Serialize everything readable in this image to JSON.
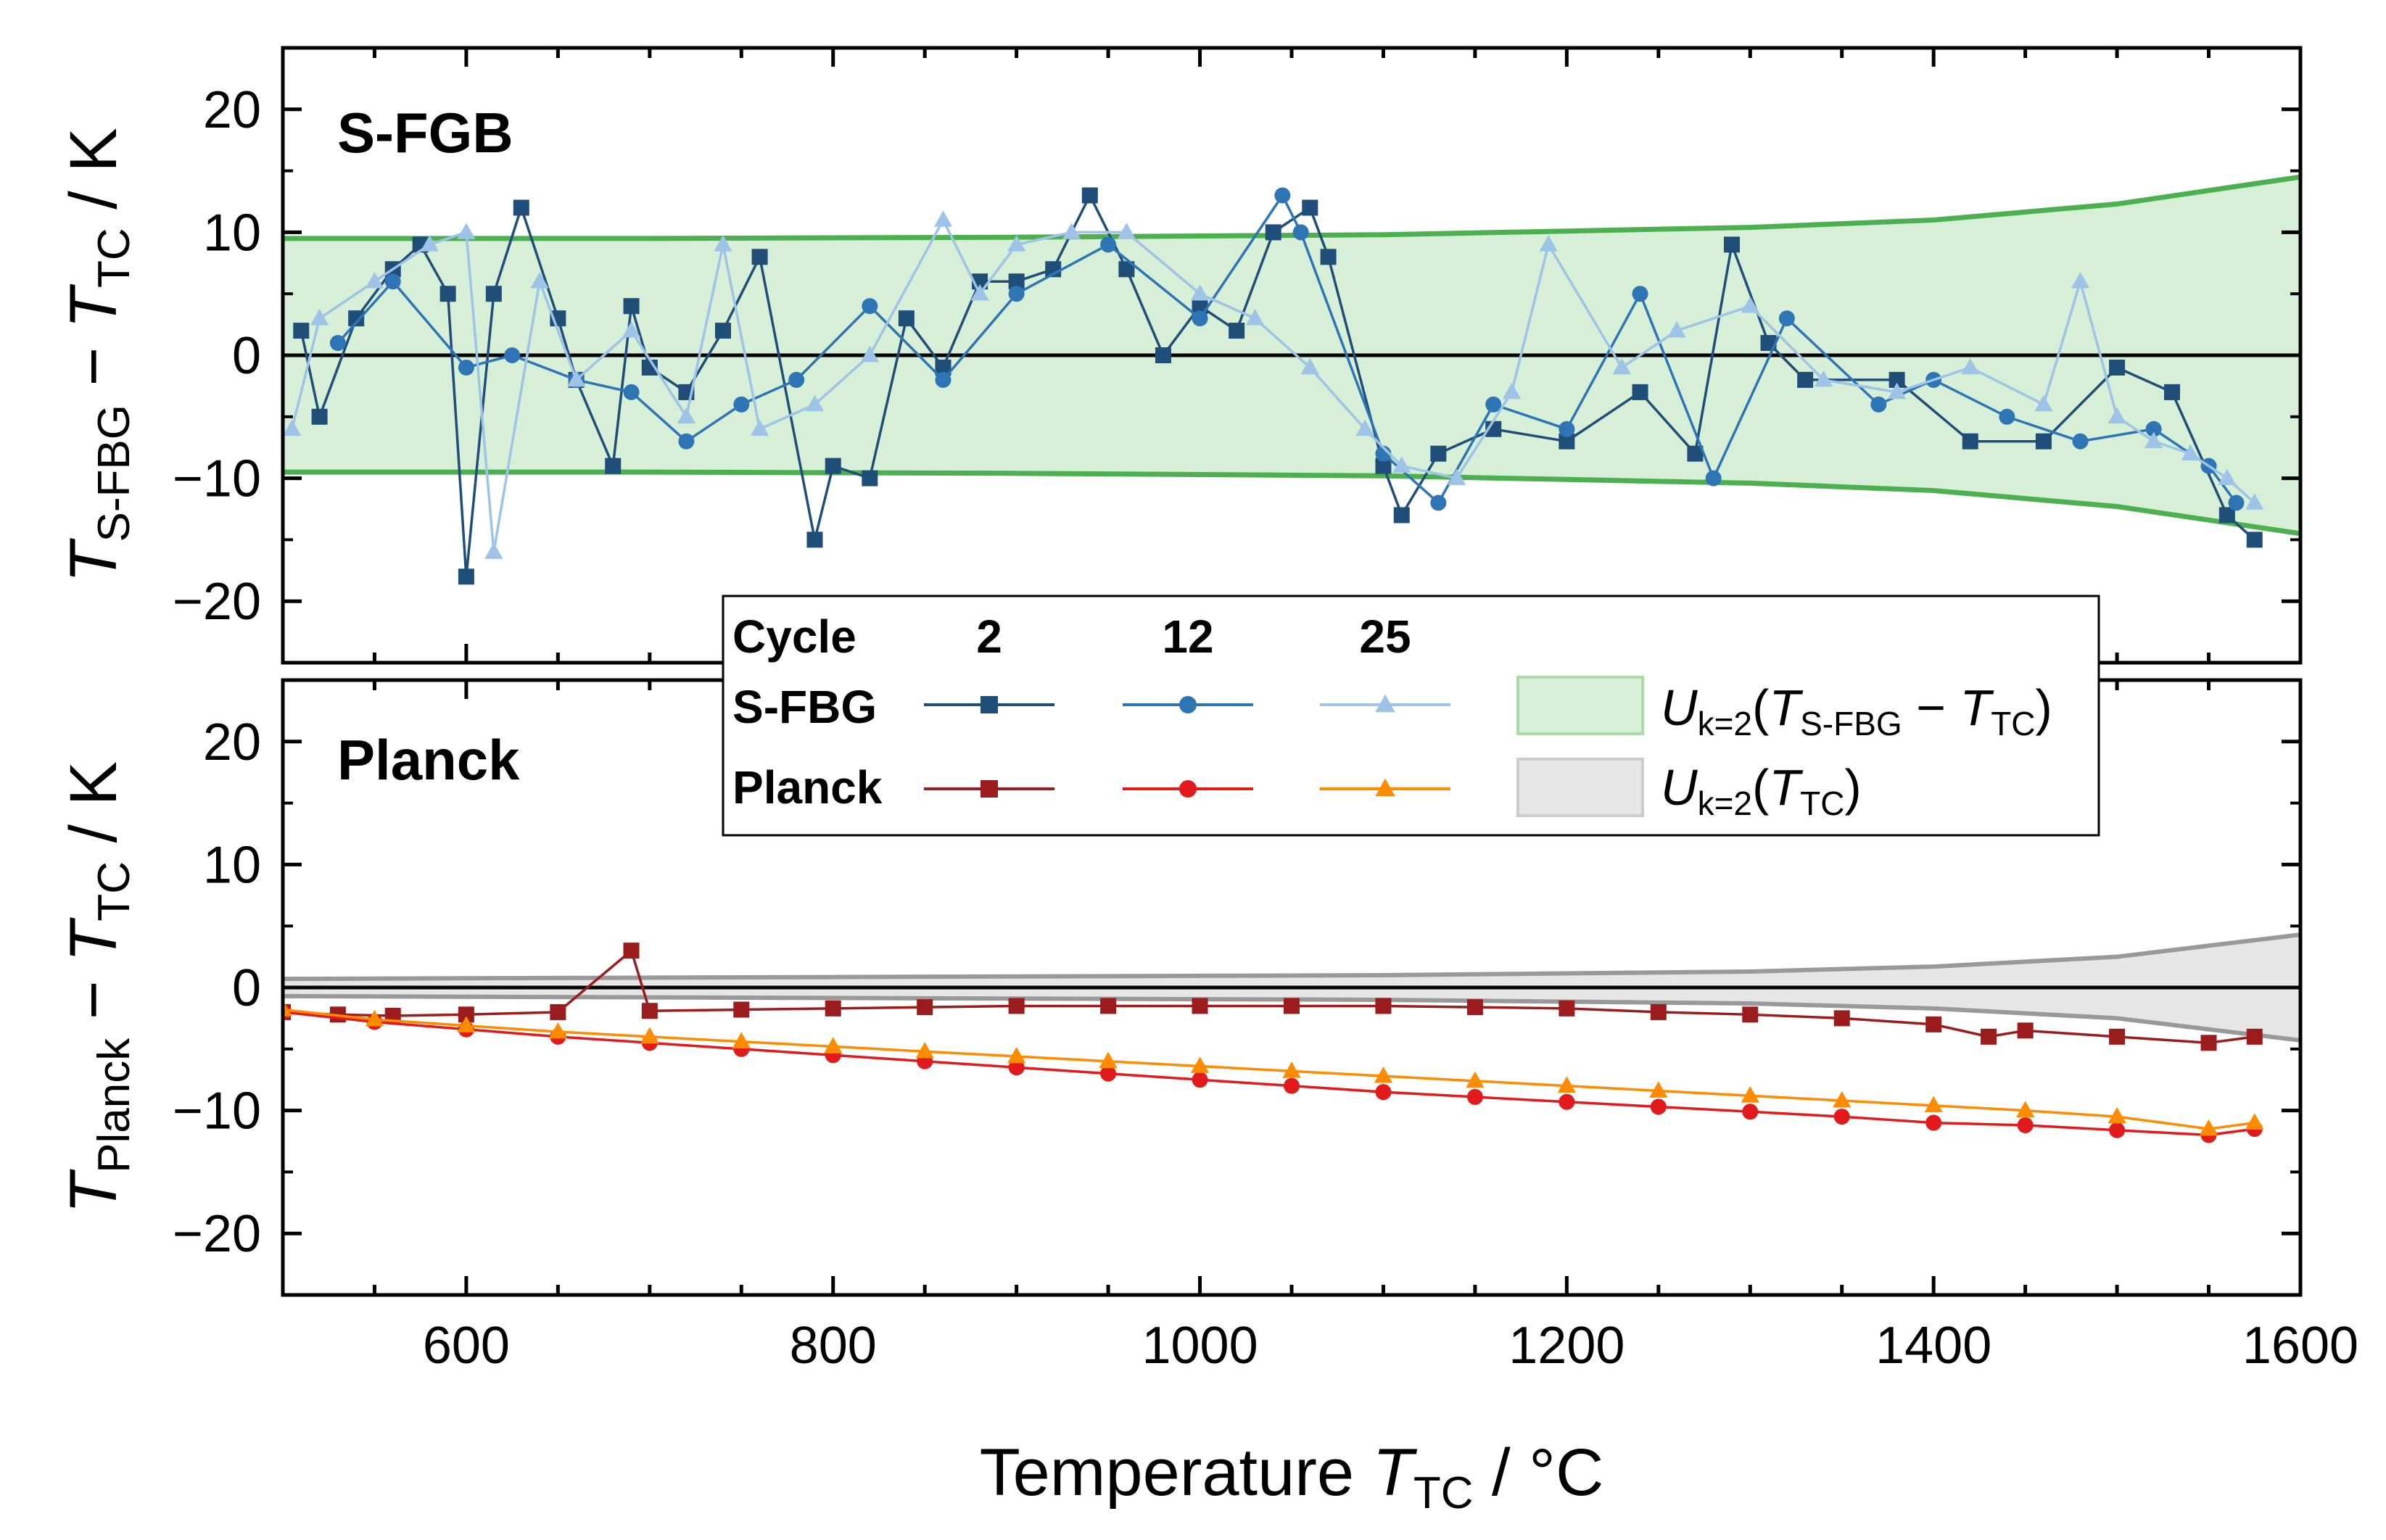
{
  "chart_data": {
    "type": "line",
    "xlabel": "Temperature",
    "xlabel_symbol": "T",
    "xlabel_sub": "TC",
    "xlabel_unit": " / °C",
    "xlim": [
      500,
      1600
    ],
    "xticks": [
      600,
      800,
      1000,
      1200,
      1400,
      1600
    ],
    "legend": {
      "cycle_label": "Cycle",
      "cycles": [
        "2",
        "12",
        "25"
      ],
      "rows": [
        "S-FBG",
        "Planck"
      ],
      "band_label_1": {
        "pre": "U",
        "sub": "k=2",
        "open": "(",
        "sym": "T",
        "sub2": "S-FBG",
        "mid": " − ",
        "sym2": "T",
        "sub3": "TC",
        "close": ")"
      },
      "band_label_2": {
        "pre": "U",
        "sub": "k=2",
        "open": "(",
        "sym": "T",
        "sub2": "TC",
        "close": ")"
      }
    },
    "panels": [
      {
        "title": "S-FGB",
        "ylabel_sym": "T",
        "ylabel_sub": "S-FBG",
        "ylabel_mid": " − ",
        "ylabel_sym2": "T",
        "ylabel_sub2": "TC",
        "ylabel_unit": " / K",
        "ylim": [
          -25,
          25
        ],
        "yticks": [
          -20,
          -10,
          0,
          10,
          20
        ],
        "ytick_labels": [
          "−20",
          "−10",
          "0",
          "10",
          "20"
        ],
        "band": {
          "name": "U_k=2(T_S-FBG − T_TC)",
          "x": [
            500,
            700,
            900,
            1100,
            1300,
            1400,
            1500,
            1600
          ],
          "upper": [
            9.5,
            9.5,
            9.6,
            9.8,
            10.4,
            11.0,
            12.3,
            14.5
          ]
        },
        "series": [
          {
            "name": "S-FBG cycle 2",
            "color": "#1f4e79",
            "marker": "square",
            "x": [
              510,
              520,
              540,
              560,
              575,
              590,
              600,
              615,
              630,
              650,
              660,
              680,
              690,
              700,
              720,
              740,
              760,
              790,
              800,
              820,
              840,
              860,
              880,
              900,
              920,
              940,
              960,
              980,
              1000,
              1020,
              1040,
              1060,
              1070,
              1100,
              1110,
              1130,
              1160,
              1200,
              1240,
              1270,
              1290,
              1310,
              1330,
              1380,
              1420,
              1460,
              1500,
              1530,
              1560,
              1575
            ],
            "y": [
              2,
              -5,
              3,
              7,
              9,
              5,
              -18,
              5,
              12,
              3,
              -2,
              -9,
              4,
              -1,
              -3,
              2,
              8,
              -15,
              -9,
              -10,
              3,
              -1,
              6,
              6,
              7,
              13,
              7,
              0,
              4,
              2,
              10,
              12,
              8,
              -9,
              -13,
              -8,
              -6,
              -7,
              -3,
              -8,
              9,
              1,
              -2,
              -2,
              -7,
              -7,
              -1,
              -3,
              -13,
              -15
            ]
          },
          {
            "name": "S-FBG cycle 12",
            "color": "#2e75b6",
            "marker": "circle",
            "x": [
              530,
              560,
              600,
              625,
              660,
              690,
              720,
              750,
              780,
              820,
              860,
              900,
              950,
              1000,
              1045,
              1055,
              1100,
              1130,
              1160,
              1200,
              1240,
              1280,
              1320,
              1370,
              1400,
              1440,
              1480,
              1520,
              1550,
              1565
            ],
            "y": [
              1,
              6,
              -1,
              0,
              -2,
              -3,
              -7,
              -4,
              -2,
              4,
              -2,
              5,
              9,
              3,
              13,
              10,
              -8,
              -12,
              -4,
              -6,
              5,
              -10,
              3,
              -4,
              -2,
              -5,
              -7,
              -6,
              -9,
              -12
            ]
          },
          {
            "name": "S-FBG cycle 25",
            "color": "#9dc3e6",
            "marker": "triangle",
            "x": [
              505,
              520,
              550,
              580,
              600,
              615,
              640,
              660,
              690,
              720,
              740,
              760,
              790,
              820,
              860,
              880,
              900,
              930,
              960,
              1000,
              1030,
              1060,
              1090,
              1110,
              1140,
              1170,
              1190,
              1230,
              1260,
              1300,
              1340,
              1380,
              1420,
              1460,
              1480,
              1500,
              1520,
              1540,
              1560,
              1575
            ],
            "y": [
              -6,
              3,
              6,
              9,
              10,
              -16,
              6,
              -2,
              2,
              -5,
              9,
              -6,
              -4,
              0,
              11,
              5,
              9,
              10,
              10,
              5,
              3,
              -1,
              -6,
              -9,
              -10,
              -3,
              9,
              -1,
              2,
              4,
              -2,
              -3,
              -1,
              -4,
              6,
              -5,
              -7,
              -8,
              -10,
              -12
            ]
          }
        ]
      },
      {
        "title": "Planck",
        "ylabel_sym": "T",
        "ylabel_sub": "Planck",
        "ylabel_mid": " − ",
        "ylabel_sym2": "T",
        "ylabel_sub2": "TC",
        "ylabel_unit": " / K",
        "ylim": [
          -25,
          25
        ],
        "yticks": [
          -20,
          -10,
          0,
          10,
          20
        ],
        "ytick_labels": [
          "−20",
          "−10",
          "0",
          "10",
          "20"
        ],
        "band": {
          "name": "U_k=2(T_TC)",
          "x": [
            500,
            700,
            900,
            1100,
            1300,
            1400,
            1500,
            1600
          ],
          "upper": [
            0.7,
            0.8,
            0.9,
            1.0,
            1.3,
            1.7,
            2.5,
            4.3
          ]
        },
        "series": [
          {
            "name": "Planck cycle 2",
            "color": "#9b1c1c",
            "marker": "square",
            "x": [
              500,
              530,
              560,
              600,
              650,
              690,
              700,
              750,
              800,
              850,
              900,
              950,
              1000,
              1050,
              1100,
              1150,
              1200,
              1250,
              1300,
              1350,
              1400,
              1430,
              1450,
              1500,
              1550,
              1575
            ],
            "y": [
              -2,
              -2.2,
              -2.3,
              -2.2,
              -2.0,
              3,
              -1.9,
              -1.8,
              -1.7,
              -1.6,
              -1.5,
              -1.5,
              -1.5,
              -1.5,
              -1.5,
              -1.6,
              -1.7,
              -2,
              -2.2,
              -2.5,
              -3,
              -4,
              -3.5,
              -4,
              -4.5,
              -4
            ]
          },
          {
            "name": "Planck cycle 12",
            "color": "#e31a1c",
            "marker": "circle",
            "x": [
              500,
              550,
              600,
              650,
              700,
              750,
              800,
              850,
              900,
              950,
              1000,
              1050,
              1100,
              1150,
              1200,
              1250,
              1300,
              1350,
              1400,
              1450,
              1500,
              1550,
              1575
            ],
            "y": [
              -2,
              -2.8,
              -3.4,
              -4.0,
              -4.5,
              -5.0,
              -5.5,
              -6.0,
              -6.5,
              -7.0,
              -7.5,
              -8.0,
              -8.5,
              -8.9,
              -9.3,
              -9.7,
              -10.1,
              -10.5,
              -11.0,
              -11.2,
              -11.6,
              -12,
              -11.5
            ]
          },
          {
            "name": "Planck cycle 25",
            "color": "#ff8c00",
            "marker": "triangle",
            "x": [
              500,
              550,
              600,
              650,
              700,
              750,
              800,
              850,
              900,
              950,
              1000,
              1050,
              1100,
              1150,
              1200,
              1250,
              1300,
              1350,
              1400,
              1450,
              1500,
              1550,
              1575
            ],
            "y": [
              -1.8,
              -2.6,
              -3.1,
              -3.6,
              -4.0,
              -4.4,
              -4.8,
              -5.2,
              -5.6,
              -6.0,
              -6.4,
              -6.8,
              -7.2,
              -7.6,
              -8.0,
              -8.4,
              -8.8,
              -9.2,
              -9.6,
              -10,
              -10.5,
              -11.5,
              -11
            ]
          }
        ]
      }
    ]
  }
}
